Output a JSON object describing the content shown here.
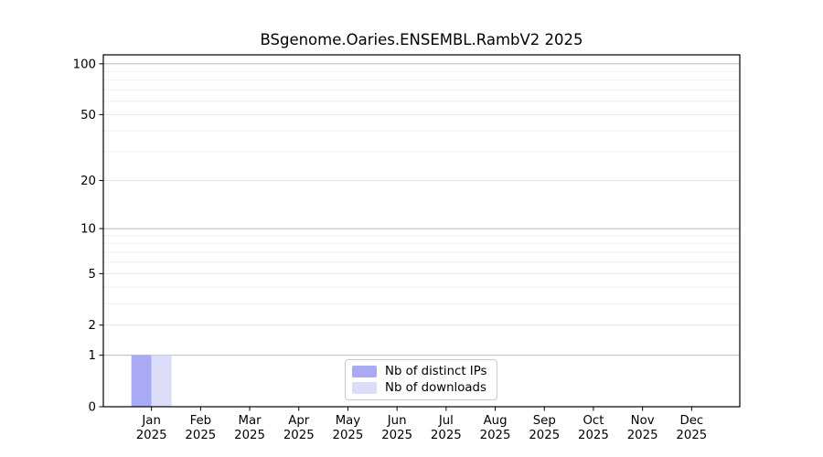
{
  "chart_data": {
    "type": "bar",
    "title": "BSgenome.Oaries.ENSEMBL.RambV2 2025",
    "categories": [
      {
        "month": "Jan",
        "year": "2025"
      },
      {
        "month": "Feb",
        "year": "2025"
      },
      {
        "month": "Mar",
        "year": "2025"
      },
      {
        "month": "Apr",
        "year": "2025"
      },
      {
        "month": "May",
        "year": "2025"
      },
      {
        "month": "Jun",
        "year": "2025"
      },
      {
        "month": "Jul",
        "year": "2025"
      },
      {
        "month": "Aug",
        "year": "2025"
      },
      {
        "month": "Sep",
        "year": "2025"
      },
      {
        "month": "Oct",
        "year": "2025"
      },
      {
        "month": "Nov",
        "year": "2025"
      },
      {
        "month": "Dec",
        "year": "2025"
      }
    ],
    "series": [
      {
        "name": "Nb of distinct IPs",
        "color": "#a8aaf6",
        "values": [
          1,
          0,
          0,
          0,
          0,
          0,
          0,
          0,
          0,
          0,
          0,
          0
        ]
      },
      {
        "name": "Nb of downloads",
        "color": "#dcdef9",
        "values": [
          1,
          0,
          0,
          0,
          0,
          0,
          0,
          0,
          0,
          0,
          0,
          0
        ]
      }
    ],
    "xlabel": "",
    "ylabel": "",
    "yscale": "log1p",
    "ylim": [
      0,
      113
    ],
    "yticks": [
      0,
      1,
      2,
      5,
      10,
      20,
      50,
      100
    ],
    "minor_gridlines": [
      3,
      4,
      6,
      7,
      8,
      9,
      30,
      40,
      60,
      70,
      80,
      90
    ],
    "grid": true,
    "legend_position": "lower center",
    "colors": {
      "grid_power10": "#b9b9b9",
      "grid_labeled": "#e4e4e4",
      "grid_minor": "#efefef",
      "frame": "#000000",
      "tick": "#000000",
      "text": "#000000",
      "background": "#ffffff"
    }
  }
}
